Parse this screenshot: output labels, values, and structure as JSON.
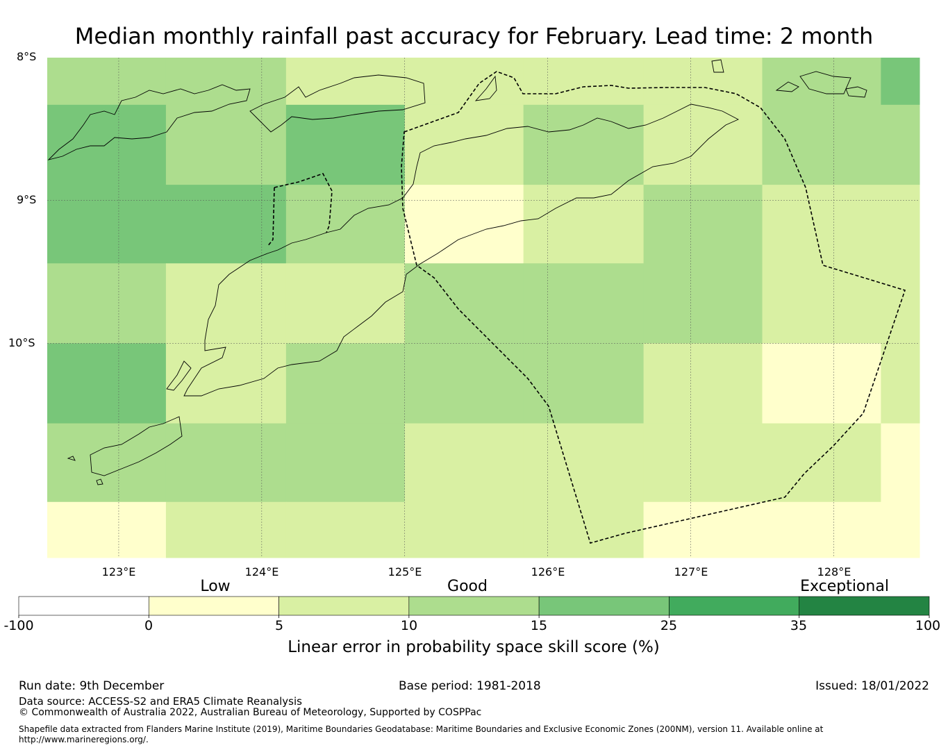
{
  "title": "Median monthly rainfall past accuracy for February. Lead time: 2 month",
  "map": {
    "lat_labels": [
      "8°S",
      "9°S",
      "10°S"
    ],
    "lon_labels": [
      "123°E",
      "124°E",
      "125°E",
      "126°E",
      "127°E",
      "128°E"
    ],
    "lon_range": [
      122.5,
      128.6
    ],
    "lat_range": [
      -11.5,
      -8.0
    ]
  },
  "grid": {
    "col_edges_lon": [
      122.5,
      123.33,
      124.17,
      125.0,
      125.83,
      126.67,
      127.5,
      128.33,
      128.6
    ],
    "row_edges_lat": [
      -8.0,
      -8.33,
      -8.89,
      -9.44,
      -10.0,
      -10.56,
      -11.11,
      -11.5
    ],
    "categories": [
      [
        2,
        2,
        1,
        1,
        1,
        1,
        2,
        3
      ],
      [
        3,
        2,
        3,
        1,
        2,
        1,
        2,
        2
      ],
      [
        3,
        3,
        2,
        0,
        1,
        2,
        1,
        1
      ],
      [
        2,
        1,
        1,
        2,
        2,
        2,
        1,
        1
      ],
      [
        3,
        1,
        2,
        2,
        2,
        1,
        0,
        1
      ],
      [
        2,
        2,
        2,
        1,
        1,
        1,
        1,
        0
      ],
      [
        0,
        1,
        1,
        1,
        1,
        0,
        0,
        0
      ]
    ]
  },
  "colorbar": {
    "category_labels": [
      "Low",
      "Good",
      "Exceptional"
    ],
    "ticks": [
      "-100",
      "0",
      "5",
      "10",
      "15",
      "25",
      "35",
      "100"
    ],
    "colors": [
      "#ffffff",
      "#ffffcc",
      "#d9f0a3",
      "#addd8e",
      "#78c679",
      "#41ab5d",
      "#238443"
    ],
    "label": "Linear error in probability space skill score (%)"
  },
  "footer": {
    "run_date": "Run date: 9th December",
    "base_period": "Base period: 1981-2018",
    "issued": "Issued: 18/01/2022",
    "data_source": "Data source: ACCESS-S2 and ERA5 Climate Reanalysis",
    "copyright": "© Commonwealth of Australia 2022, Australian Bureau of Meteorology, Supported by COSPPac",
    "shapefile": "Shapefile data extracted from Flanders Marine Institute (2019), Maritime Boundaries Geodatabase: Maritime Boundaries and Exclusive Economic Zones (200NM), version 11. Available online at http://www.marineregions.org/."
  }
}
